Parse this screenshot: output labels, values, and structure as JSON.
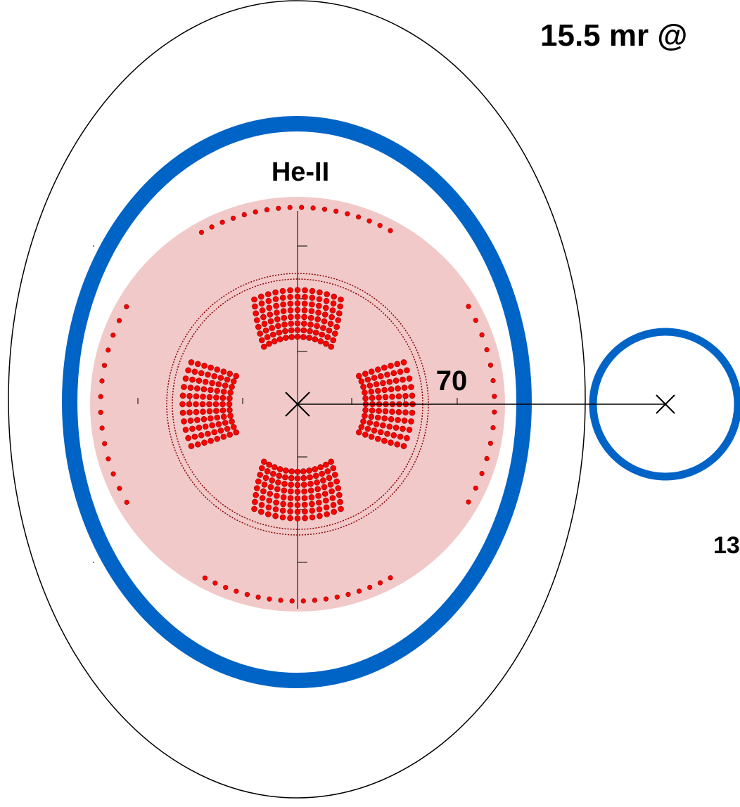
{
  "labels": {
    "helium": "He-II",
    "separation": "70",
    "title_fragment": "15.5 mr @",
    "corner_fragment": "13"
  },
  "colors": {
    "vessel_ring": "#0063c6",
    "collar_fill": "#f1c9c9",
    "conductor": "#ff0000",
    "conductor_edge": "#8b0000",
    "outline": "#000000"
  },
  "conductor_blocks": {
    "horizontal_coil_layers": 8,
    "vertical_coil_layers": 8
  }
}
